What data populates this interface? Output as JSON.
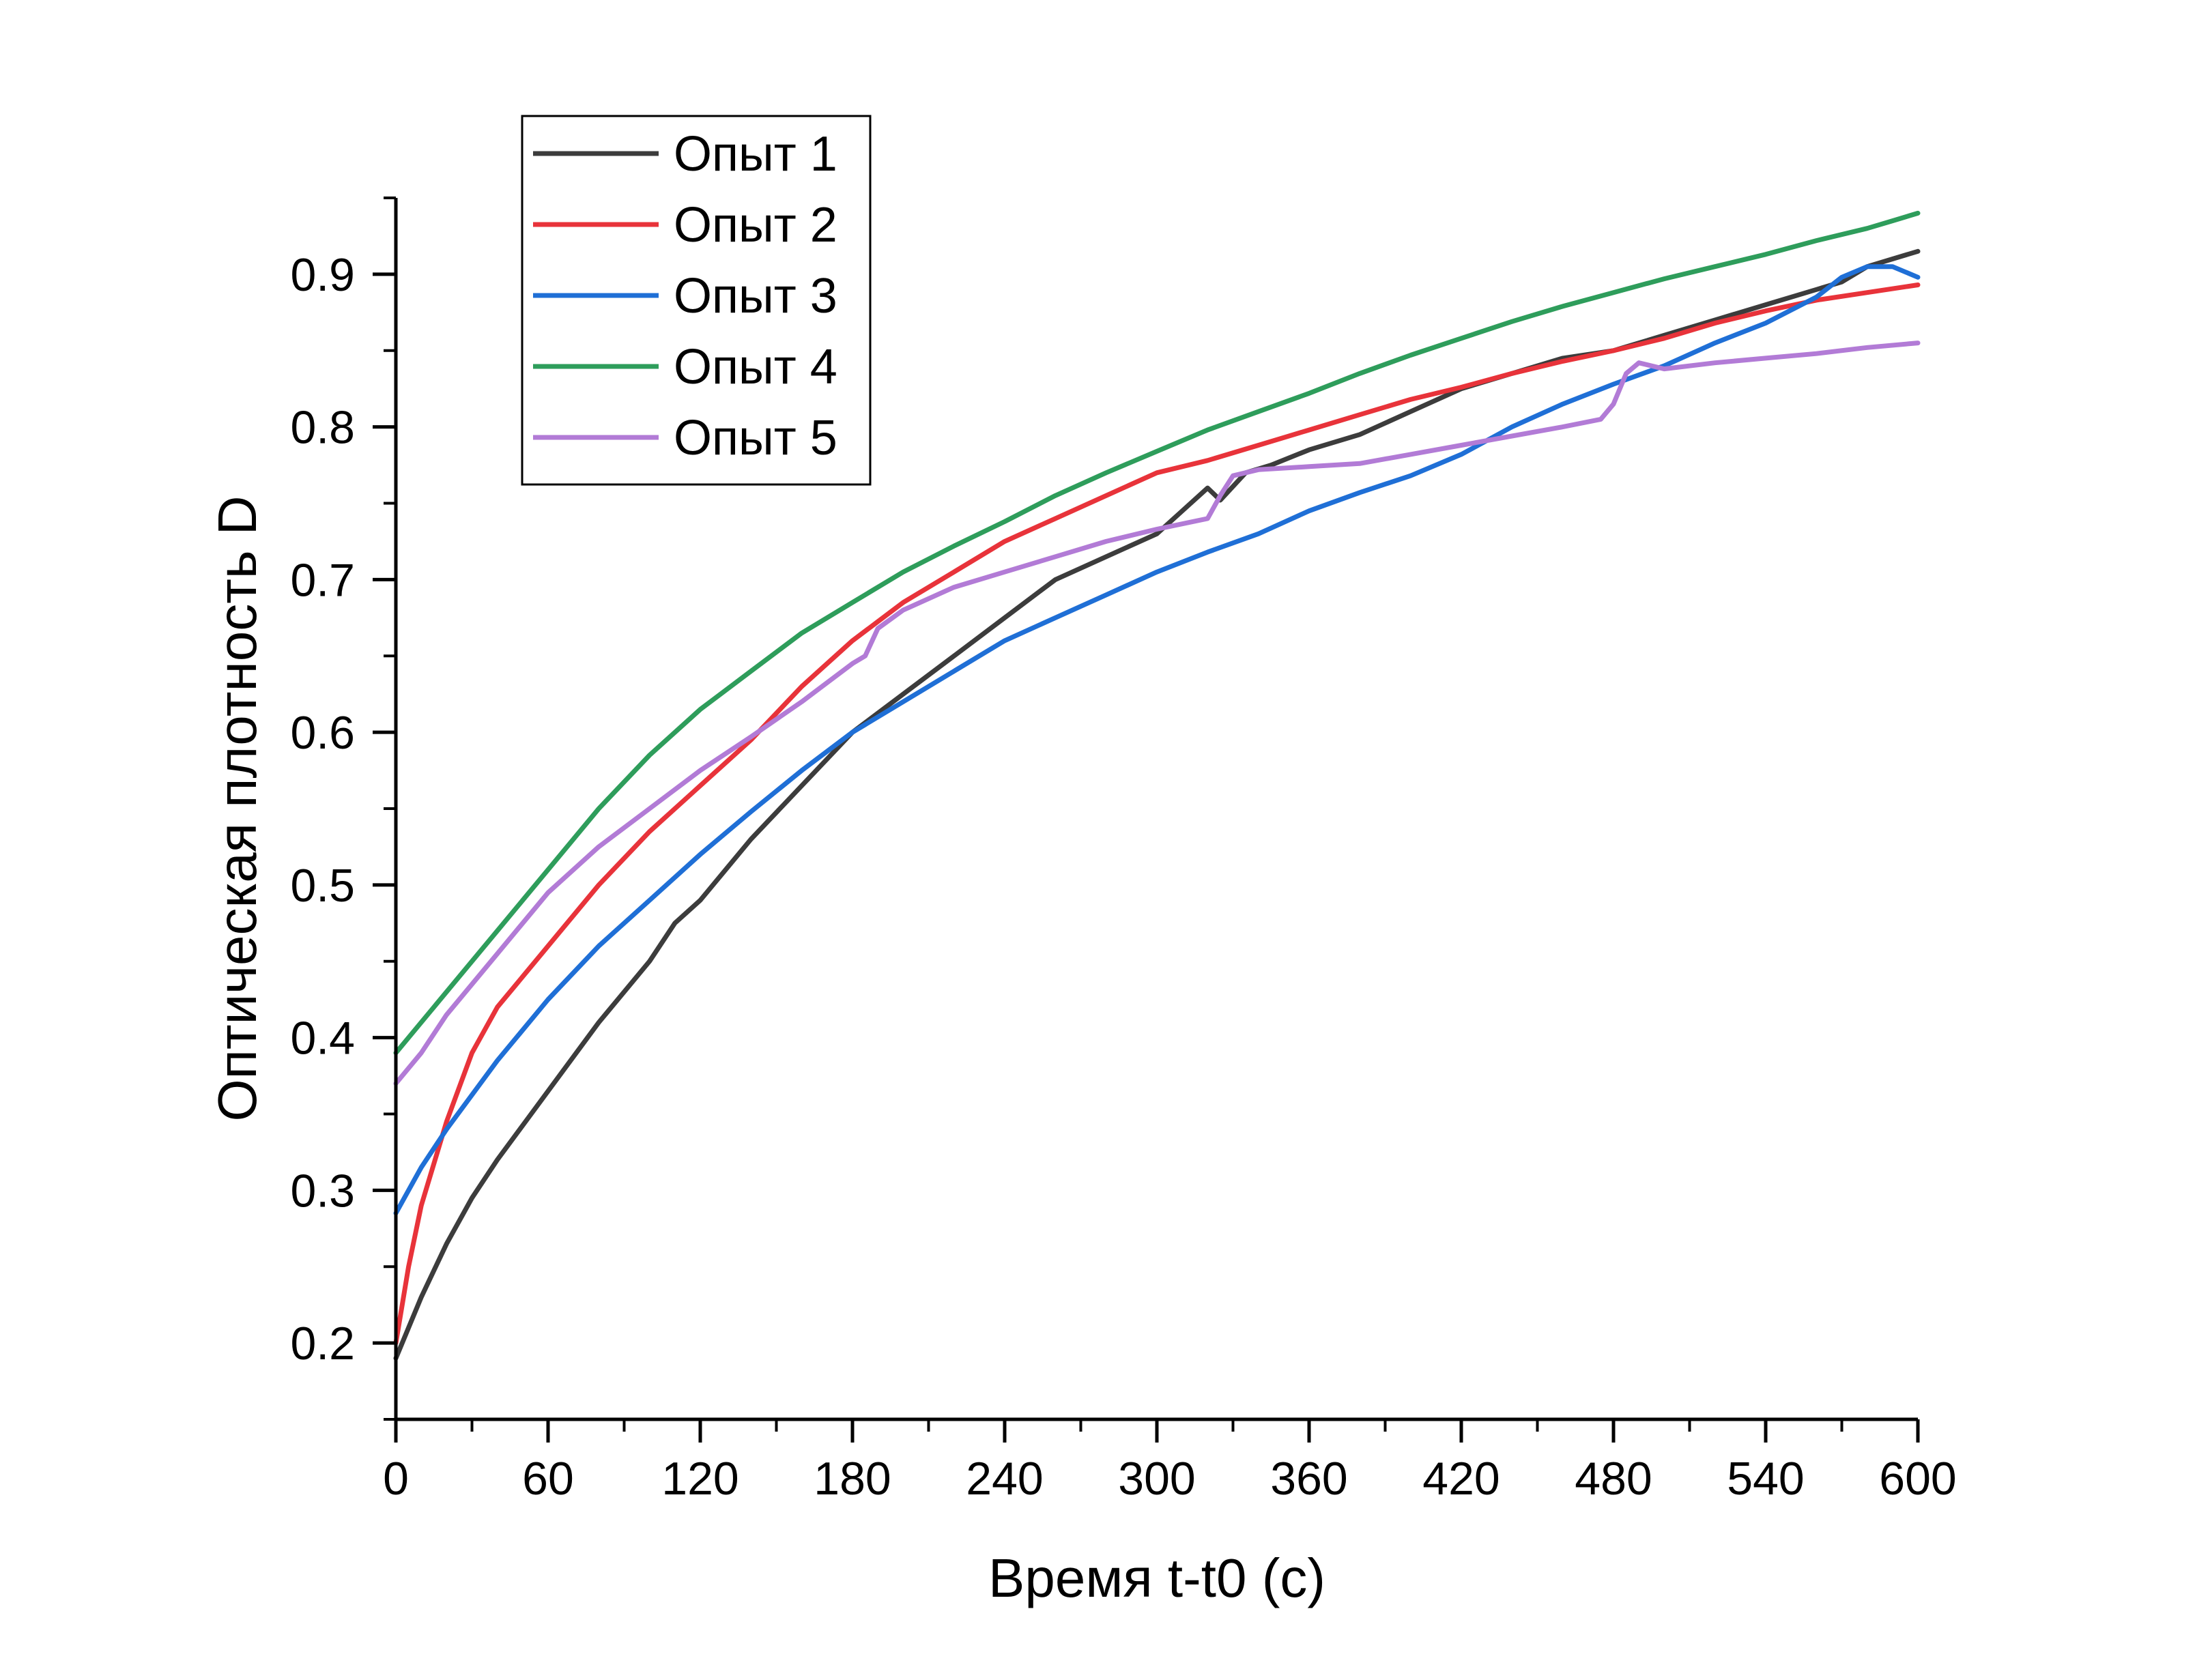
{
  "chart_data": {
    "type": "line",
    "title": "",
    "xlabel": "Время t-t0 (с)",
    "ylabel": "Оптическая плотность D",
    "xlim": [
      0,
      600
    ],
    "ylim": [
      0.15,
      0.95
    ],
    "xticks": [
      0,
      60,
      120,
      180,
      240,
      300,
      360,
      420,
      480,
      540,
      600
    ],
    "xtick_labels": [
      "0",
      "60",
      "120",
      "180",
      "240",
      "300",
      "360",
      "420",
      "480",
      "540",
      "600"
    ],
    "yticks": [
      0.2,
      0.3,
      0.4,
      0.5,
      0.6,
      0.7,
      0.8,
      0.9
    ],
    "ytick_labels": [
      "0.2",
      "0.3",
      "0.4",
      "0.5",
      "0.6",
      "0.7",
      "0.8",
      "0.9"
    ],
    "grid": false,
    "legend_position": "top-left",
    "series": [
      {
        "name": "Опыт 1",
        "color": "#3c3c3c",
        "x": [
          0,
          10,
          20,
          30,
          40,
          60,
          80,
          100,
          110,
          120,
          140,
          160,
          180,
          200,
          220,
          240,
          260,
          280,
          300,
          310,
          320,
          325,
          335,
          345,
          360,
          380,
          400,
          420,
          440,
          460,
          480,
          500,
          520,
          540,
          560,
          570,
          580,
          590,
          600
        ],
        "y": [
          0.19,
          0.23,
          0.265,
          0.295,
          0.32,
          0.365,
          0.41,
          0.45,
          0.475,
          0.49,
          0.53,
          0.565,
          0.6,
          0.625,
          0.65,
          0.675,
          0.7,
          0.715,
          0.73,
          0.745,
          0.76,
          0.752,
          0.77,
          0.775,
          0.785,
          0.795,
          0.81,
          0.825,
          0.835,
          0.845,
          0.85,
          0.86,
          0.87,
          0.88,
          0.89,
          0.895,
          0.905,
          0.91,
          0.915
        ]
      },
      {
        "name": "Опыт 2",
        "color": "#e8333a",
        "x": [
          0,
          5,
          10,
          20,
          30,
          40,
          60,
          80,
          100,
          120,
          140,
          160,
          180,
          200,
          220,
          240,
          260,
          280,
          300,
          320,
          340,
          360,
          380,
          400,
          420,
          440,
          460,
          480,
          500,
          520,
          540,
          560,
          580,
          600
        ],
        "y": [
          0.2,
          0.25,
          0.29,
          0.345,
          0.39,
          0.42,
          0.46,
          0.5,
          0.535,
          0.565,
          0.595,
          0.63,
          0.66,
          0.685,
          0.705,
          0.725,
          0.74,
          0.755,
          0.77,
          0.778,
          0.788,
          0.798,
          0.808,
          0.818,
          0.826,
          0.835,
          0.843,
          0.85,
          0.858,
          0.868,
          0.876,
          0.883,
          0.888,
          0.893
        ]
      },
      {
        "name": "Опыт 3",
        "color": "#1f6fd6",
        "x": [
          0,
          10,
          20,
          40,
          60,
          80,
          100,
          120,
          140,
          160,
          180,
          200,
          220,
          240,
          260,
          280,
          300,
          320,
          340,
          360,
          380,
          400,
          420,
          440,
          460,
          480,
          500,
          520,
          540,
          560,
          570,
          580,
          590,
          600
        ],
        "y": [
          0.285,
          0.315,
          0.34,
          0.385,
          0.425,
          0.46,
          0.49,
          0.52,
          0.548,
          0.575,
          0.6,
          0.62,
          0.64,
          0.66,
          0.675,
          0.69,
          0.705,
          0.718,
          0.73,
          0.745,
          0.757,
          0.768,
          0.782,
          0.8,
          0.815,
          0.828,
          0.84,
          0.855,
          0.868,
          0.885,
          0.898,
          0.905,
          0.905,
          0.898
        ]
      },
      {
        "name": "Опыт 4",
        "color": "#2e9d5b",
        "x": [
          0,
          20,
          40,
          60,
          80,
          100,
          120,
          140,
          160,
          180,
          200,
          220,
          240,
          260,
          280,
          300,
          320,
          340,
          360,
          380,
          400,
          420,
          440,
          460,
          480,
          500,
          520,
          540,
          560,
          580,
          590,
          600
        ],
        "y": [
          0.39,
          0.43,
          0.47,
          0.51,
          0.55,
          0.585,
          0.615,
          0.64,
          0.665,
          0.685,
          0.705,
          0.722,
          0.738,
          0.755,
          0.77,
          0.784,
          0.798,
          0.81,
          0.822,
          0.835,
          0.847,
          0.858,
          0.869,
          0.879,
          0.888,
          0.897,
          0.905,
          0.913,
          0.922,
          0.93,
          0.935,
          0.94
        ]
      },
      {
        "name": "Опыт 5",
        "color": "#b27bd6",
        "x": [
          0,
          10,
          20,
          40,
          60,
          80,
          100,
          120,
          140,
          160,
          180,
          185,
          190,
          200,
          220,
          240,
          260,
          280,
          300,
          320,
          325,
          330,
          340,
          360,
          380,
          400,
          420,
          440,
          460,
          475,
          480,
          485,
          490,
          500,
          520,
          540,
          560,
          580,
          600
        ],
        "y": [
          0.37,
          0.39,
          0.415,
          0.455,
          0.495,
          0.525,
          0.55,
          0.575,
          0.597,
          0.62,
          0.645,
          0.65,
          0.668,
          0.68,
          0.695,
          0.705,
          0.715,
          0.725,
          0.733,
          0.74,
          0.755,
          0.768,
          0.772,
          0.774,
          0.776,
          0.782,
          0.788,
          0.794,
          0.8,
          0.805,
          0.815,
          0.835,
          0.842,
          0.838,
          0.842,
          0.845,
          0.848,
          0.852,
          0.855
        ]
      }
    ]
  }
}
